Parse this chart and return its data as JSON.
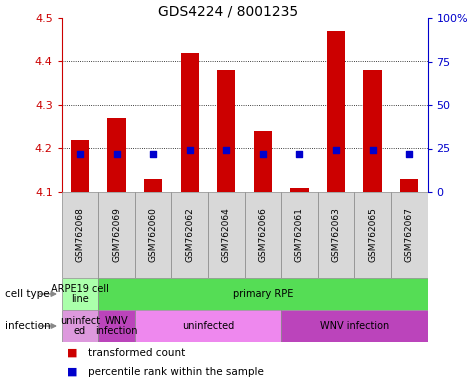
{
  "title": "GDS4224 / 8001235",
  "samples": [
    "GSM762068",
    "GSM762069",
    "GSM762060",
    "GSM762062",
    "GSM762064",
    "GSM762066",
    "GSM762061",
    "GSM762063",
    "GSM762065",
    "GSM762067"
  ],
  "transformed_count": [
    4.22,
    4.27,
    4.13,
    4.42,
    4.38,
    4.24,
    4.11,
    4.47,
    4.38,
    4.13
  ],
  "percentile_rank": [
    22,
    22,
    22,
    24,
    24,
    22,
    22,
    24,
    24,
    22
  ],
  "ylim": [
    4.1,
    4.5
  ],
  "yticks": [
    4.1,
    4.2,
    4.3,
    4.4,
    4.5
  ],
  "y2lim": [
    0,
    100
  ],
  "y2ticks": [
    0,
    25,
    50,
    75,
    100
  ],
  "y2ticklabels": [
    "0",
    "25",
    "50",
    "75",
    "100%"
  ],
  "bar_color": "#cc0000",
  "dot_color": "#0000cc",
  "bar_width": 0.5,
  "cell_type_ranges": [
    {
      "xstart": -0.5,
      "xend": 0.5,
      "color": "#aaffaa",
      "label": "ARPE19 cell\nline"
    },
    {
      "xstart": 0.5,
      "xend": 9.5,
      "color": "#55dd55",
      "label": "primary RPE"
    }
  ],
  "infection_ranges": [
    {
      "xstart": -0.5,
      "xend": 0.5,
      "color": "#dd99dd",
      "label": "uninfect\ned"
    },
    {
      "xstart": 0.5,
      "xend": 1.5,
      "color": "#bb44bb",
      "label": "WNV\ninfection"
    },
    {
      "xstart": 1.5,
      "xend": 5.5,
      "color": "#ee88ee",
      "label": "uninfected"
    },
    {
      "xstart": 5.5,
      "xend": 9.5,
      "color": "#bb44bb",
      "label": "WNV infection"
    }
  ],
  "ylabel_color": "#cc0000",
  "y2label_color": "#0000cc",
  "tick_label_bg": "#d8d8d8",
  "title_fontsize": 10
}
